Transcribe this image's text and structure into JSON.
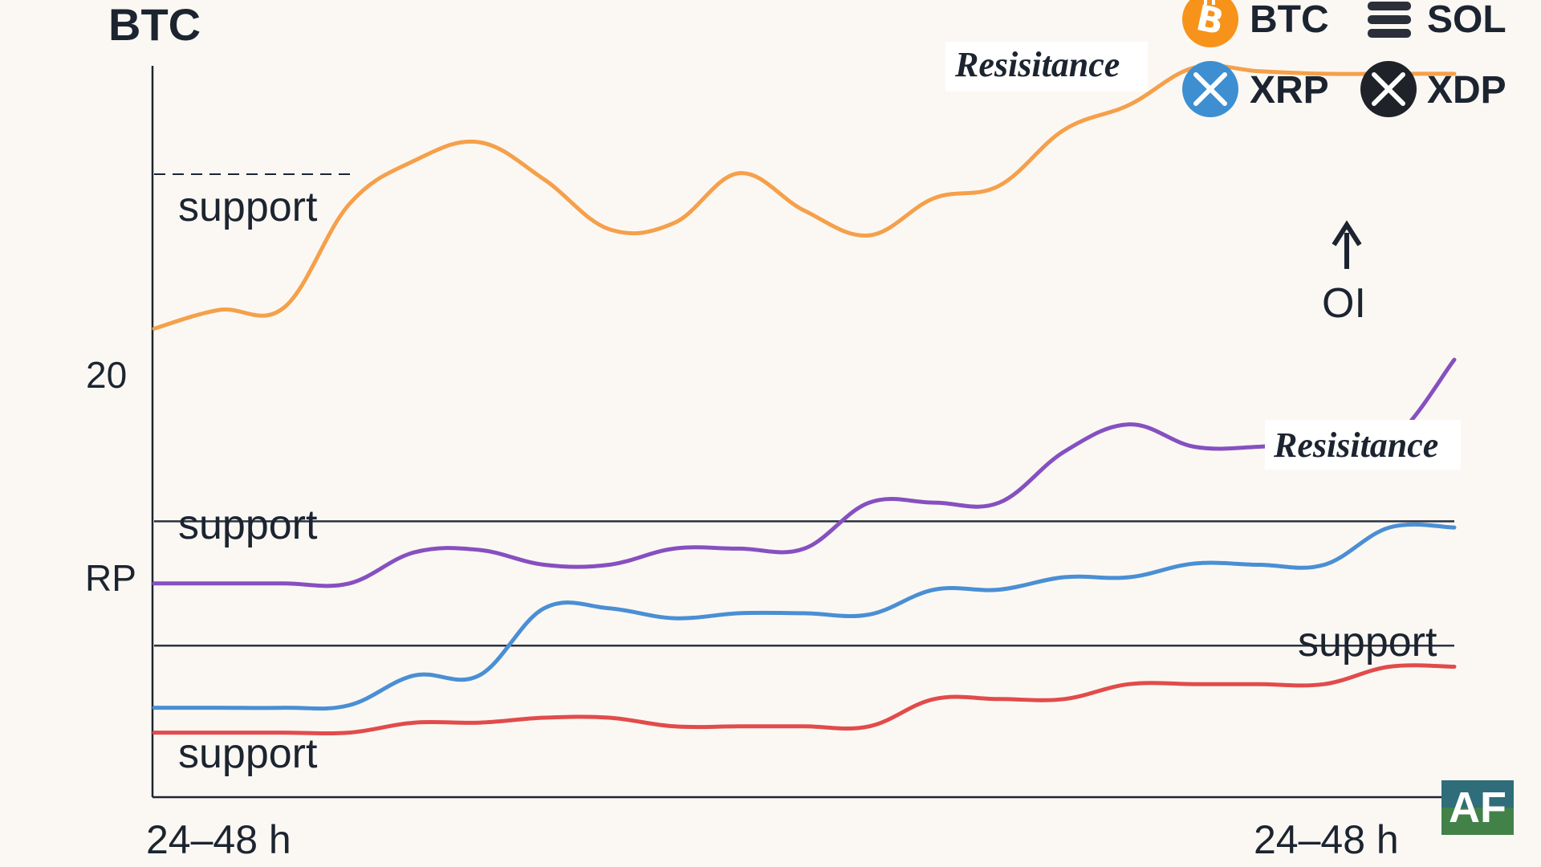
{
  "chart_data": {
    "type": "line",
    "title": "BTC",
    "x_labels": [
      "24–48 h",
      "24–48 h"
    ],
    "y_tick_labels": [
      "20",
      "RP"
    ],
    "legend": {
      "placement": "top-right",
      "items": [
        {
          "name": "BTC",
          "icon": "bitcoin-icon",
          "color": "#f7931a"
        },
        {
          "name": "SOL",
          "icon": "sol-icon",
          "color": "#2a2f3a"
        },
        {
          "name": "XRP",
          "icon": "xrp-icon",
          "color": "#3d8fd1"
        },
        {
          "name": "XDP",
          "icon": "xdp-icon",
          "color": "#1f2228"
        }
      ]
    },
    "annotations": {
      "support_top": "support",
      "resistance_top": "Resisitance",
      "support_mid": "support",
      "resistance_mid": "Resisitance",
      "support_right": "support",
      "support_bottom": "support",
      "oi_label": "OI"
    },
    "watermark": "AF",
    "x": [
      0,
      5,
      10,
      15,
      20,
      25,
      30,
      35,
      40,
      45,
      50,
      55,
      60,
      65,
      70,
      75,
      80,
      85,
      90,
      95,
      100
    ],
    "series": [
      {
        "color": "#f5a04a",
        "values": [
          35.5,
          37.0,
          37.2,
          45.5,
          49.0,
          50.5,
          47.5,
          43.5,
          44.0,
          48.0,
          45.0,
          43.0,
          46.0,
          47.0,
          51.5,
          53.5,
          56.5,
          56.2,
          56.0,
          56.0,
          56.0
        ]
      },
      {
        "color": "#8650c0",
        "values": [
          15.0,
          15.0,
          15.0,
          15.0,
          17.5,
          17.7,
          16.5,
          16.5,
          17.8,
          17.8,
          17.8,
          21.5,
          21.5,
          21.5,
          25.6,
          27.8,
          26.0,
          26.0,
          26.4,
          26.4,
          33.0
        ]
      },
      {
        "color": "#4a8fd4",
        "values": [
          5.0,
          5.0,
          5.0,
          5.2,
          7.6,
          7.6,
          13.0,
          13.0,
          12.2,
          12.6,
          12.6,
          12.5,
          14.5,
          14.5,
          15.5,
          15.5,
          16.6,
          16.5,
          16.5,
          19.5,
          19.5
        ]
      },
      {
        "color": "#e24b4b",
        "values": [
          3.0,
          3.0,
          3.0,
          3.0,
          3.8,
          3.8,
          4.2,
          4.2,
          3.5,
          3.5,
          3.5,
          3.5,
          5.7,
          5.7,
          5.7,
          6.9,
          6.9,
          6.9,
          6.9,
          8.3,
          8.3
        ]
      }
    ],
    "reference_lines": [
      20,
      10
    ],
    "ylim": [
      -2,
      60
    ],
    "grid": false
  }
}
